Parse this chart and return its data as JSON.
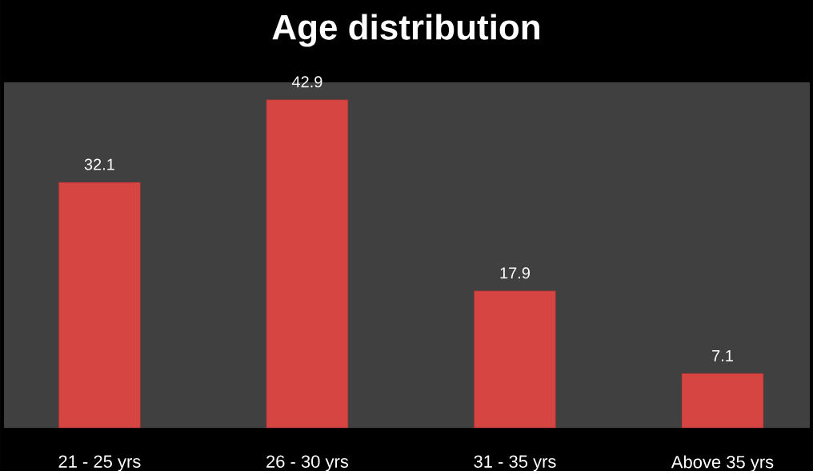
{
  "chart_data": {
    "type": "bar",
    "title": "Age distribution",
    "categories": [
      "21 - 25 yrs",
      "26 - 30 yrs",
      "31 - 35 yrs",
      "Above 35 yrs"
    ],
    "values": [
      32.1,
      42.9,
      17.9,
      7.1
    ],
    "color": "#d64541",
    "data_labels": true
  }
}
